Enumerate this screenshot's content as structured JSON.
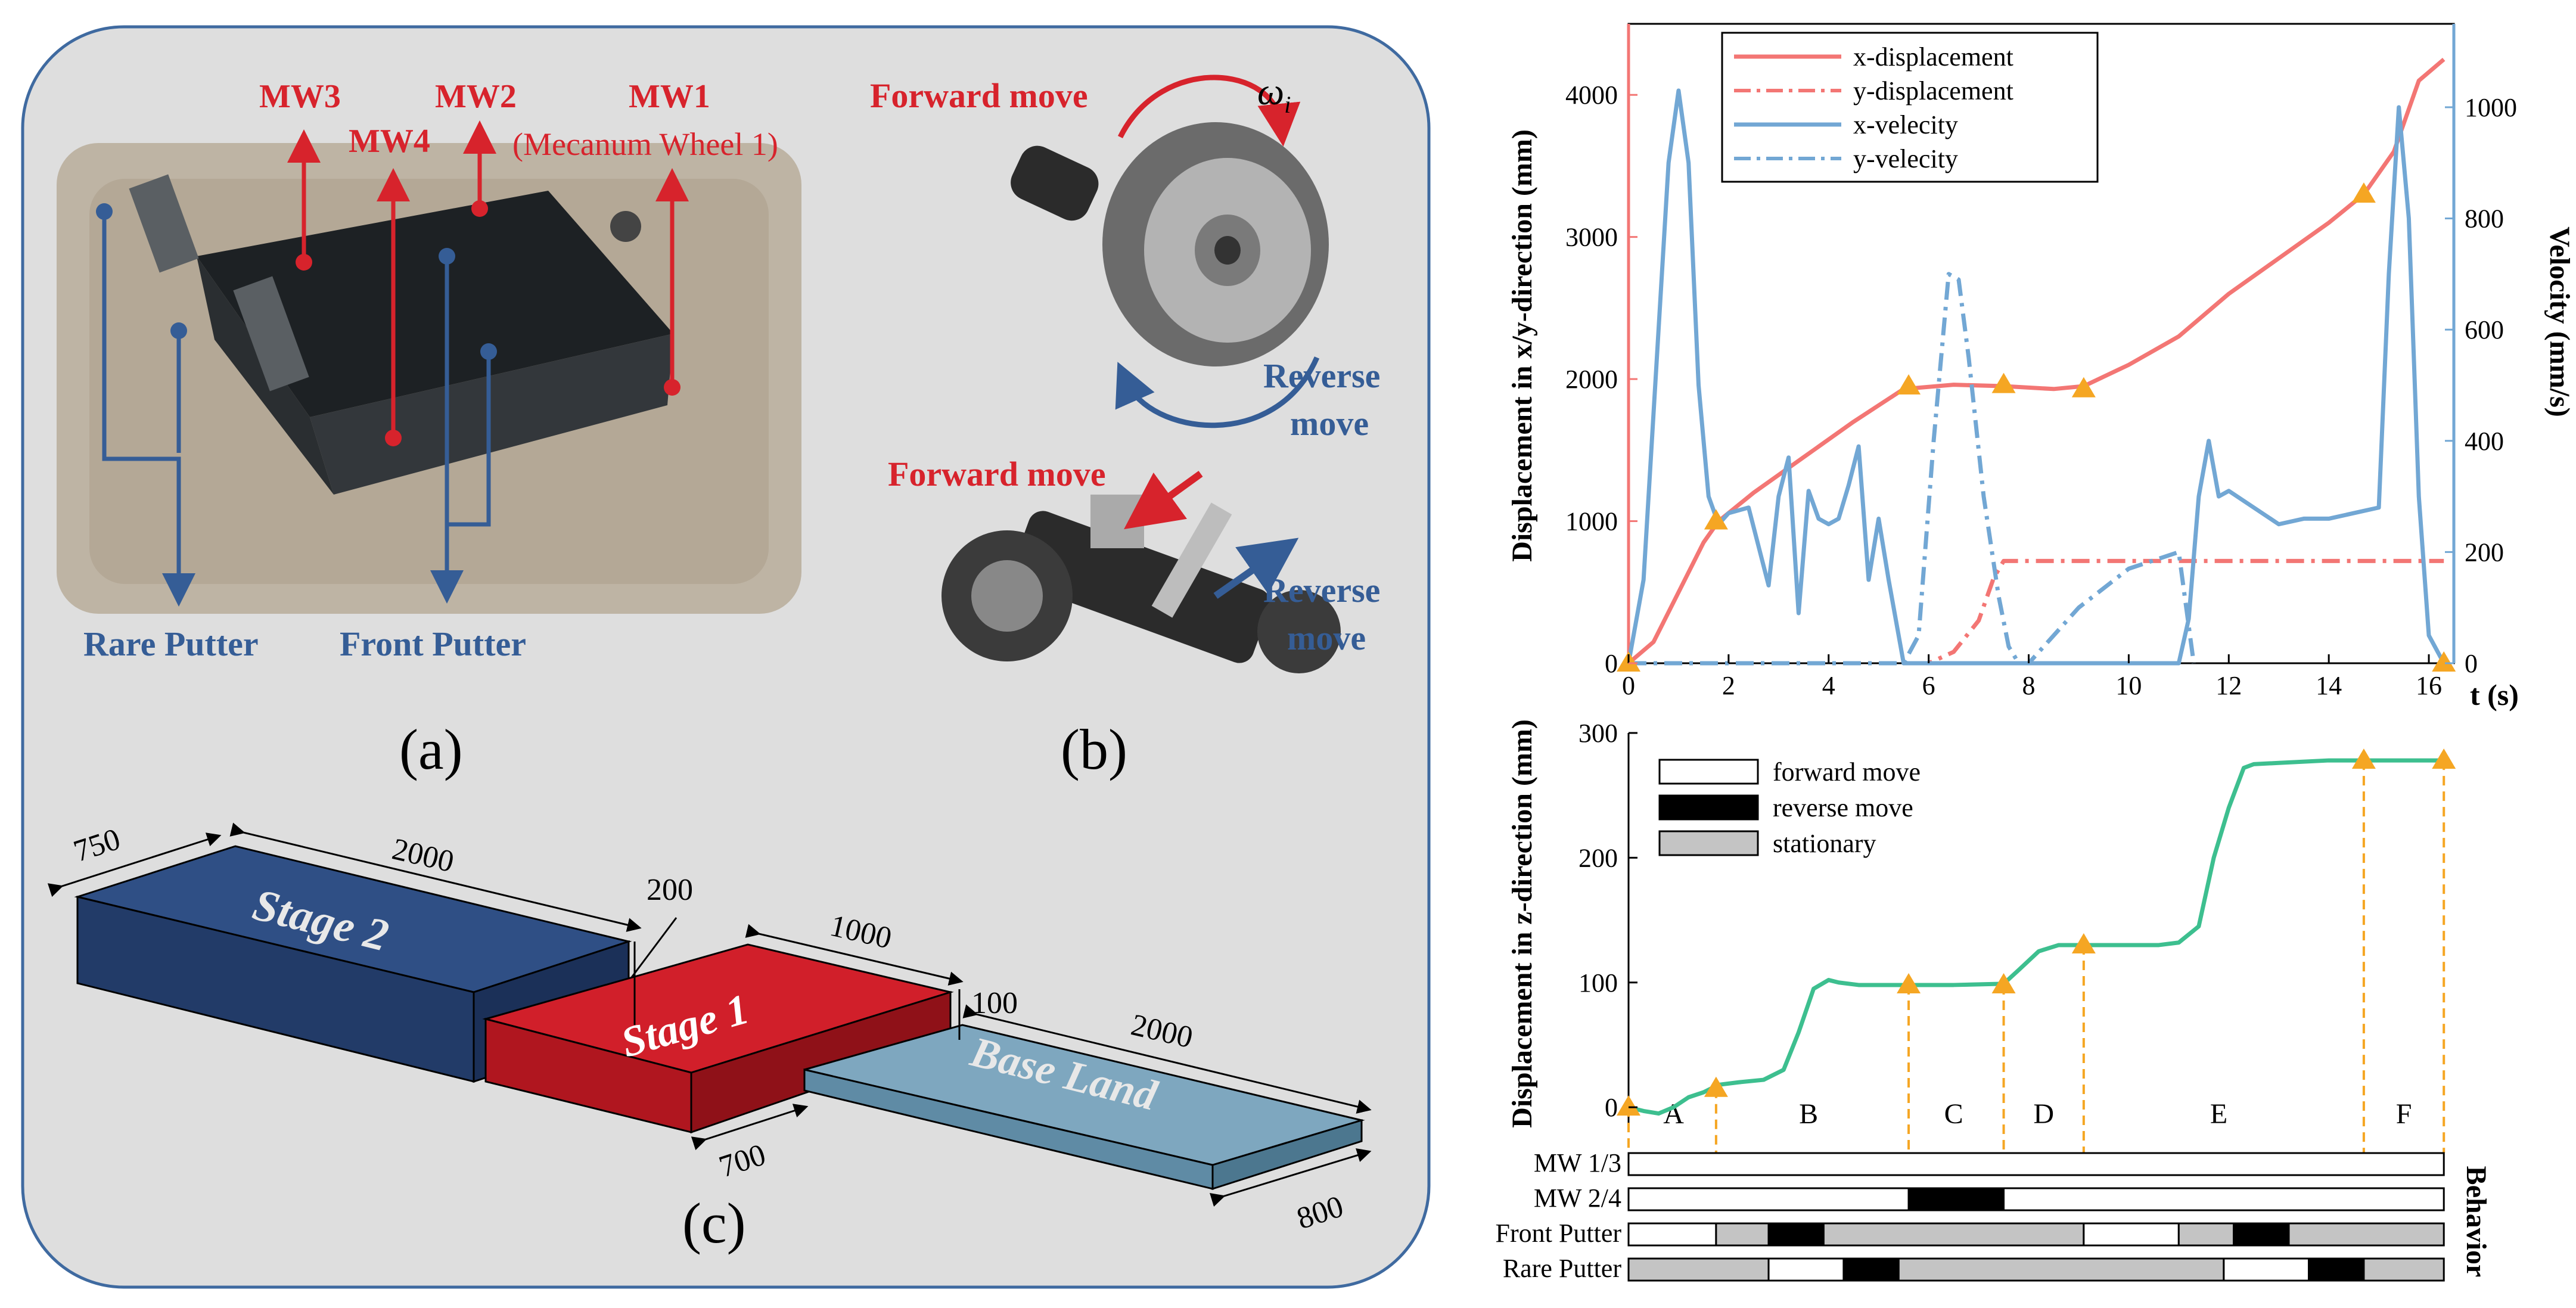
{
  "colors": {
    "red": "#d7232c",
    "blue": "#355d96",
    "panel": "#dedede",
    "panel_border": "#3f6aa0",
    "x_disp": "#f37674",
    "y_disp": "#f37674",
    "velocity": "#72a7d4",
    "z_disp": "#3dbf8f",
    "marker": "#f5a623",
    "stage2": "#2f4f85",
    "stage1": "#d11f2a",
    "base": "#7ea7bf"
  },
  "panel_a": {
    "caption": "(a)",
    "labels": {
      "mw1": "MW1",
      "mw1_sub": "(Mecanum Wheel 1)",
      "mw2": "MW2",
      "mw3": "MW3",
      "mw4": "MW4",
      "rare_putter": "Rare Putter",
      "front_putter": "Front Putter"
    }
  },
  "panel_b": {
    "caption": "(b)",
    "forward_move_1": "Forward move",
    "omega": "ω",
    "omega_sub": "i",
    "reverse_move_1": "Reverse",
    "reverse_move_1b": "move",
    "forward_move_2": "Forward move",
    "reverse_move_2": "Reverse",
    "reverse_move_2b": "move"
  },
  "panel_c": {
    "caption": "(c)",
    "stage2": "Stage 2",
    "stage1": "Stage 1",
    "base": "Base Land",
    "dims": {
      "d750": "750",
      "d2000a": "2000",
      "d200": "200",
      "d1000": "1000",
      "d100": "100",
      "d2000b": "2000",
      "d700": "700",
      "d800": "800"
    }
  },
  "chart_data": [
    {
      "type": "line",
      "title": "",
      "xlabel": "t (s)",
      "ylabel": "Displacement in x/y-direction (mm)",
      "y2label": "Velocity (mm/s)",
      "xlim": [
        0,
        16.5
      ],
      "ylim": [
        0,
        4500
      ],
      "y2lim": [
        0,
        1150
      ],
      "xticks": [
        0,
        2,
        4,
        6,
        8,
        10,
        12,
        14,
        16
      ],
      "yticks": [
        0,
        1000,
        2000,
        3000,
        4000
      ],
      "y2ticks": [
        0,
        200,
        400,
        600,
        800,
        1000
      ],
      "legend": [
        "x-displacement",
        "y-displacement",
        "x-velecity",
        "y-velecity"
      ],
      "legend_position": "top-left",
      "series": [
        {
          "name": "x-displacement",
          "axis": "left",
          "style": "solid",
          "x": [
            0,
            0.5,
            1.0,
            1.5,
            1.8,
            2.5,
            3.5,
            4.5,
            5.5,
            6.5,
            7.5,
            8.5,
            9.1,
            10.0,
            11.0,
            12.0,
            13.0,
            14.0,
            14.7,
            15.3,
            15.8,
            16.3
          ],
          "y": [
            0,
            150,
            500,
            850,
            1000,
            1200,
            1450,
            1700,
            1930,
            1960,
            1950,
            1930,
            1950,
            2100,
            2300,
            2600,
            2850,
            3100,
            3300,
            3600,
            4100,
            4250
          ]
        },
        {
          "name": "y-displacement",
          "axis": "left",
          "style": "dashdot",
          "x": [
            0,
            5.5,
            6.0,
            6.5,
            7.0,
            7.3,
            7.5,
            9.0,
            12.0,
            16.3
          ],
          "y": [
            0,
            0,
            0,
            80,
            300,
            600,
            720,
            720,
            720,
            720
          ]
        },
        {
          "name": "x-velecity",
          "axis": "right",
          "style": "solid",
          "x": [
            0,
            0.3,
            0.6,
            0.8,
            1.0,
            1.2,
            1.4,
            1.6,
            1.8,
            2.0,
            2.4,
            2.8,
            3.0,
            3.2,
            3.4,
            3.6,
            3.8,
            4.0,
            4.2,
            4.4,
            4.6,
            4.8,
            5.0,
            5.2,
            5.5,
            5.8,
            6.0,
            6.5,
            7.0,
            7.5,
            8.0,
            8.5,
            9.0,
            9.5,
            10.0,
            10.5,
            11.0,
            11.2,
            11.4,
            11.6,
            11.8,
            12.0,
            12.5,
            13.0,
            13.5,
            14.0,
            14.5,
            15.0,
            15.2,
            15.4,
            15.6,
            15.8,
            16.0,
            16.3
          ],
          "y": [
            0,
            150,
            600,
            900,
            1030,
            900,
            500,
            300,
            250,
            270,
            280,
            140,
            300,
            370,
            90,
            310,
            260,
            250,
            260,
            320,
            390,
            150,
            260,
            150,
            0,
            0,
            0,
            0,
            0,
            0,
            0,
            0,
            0,
            0,
            0,
            0,
            0,
            80,
            300,
            400,
            300,
            310,
            280,
            250,
            260,
            260,
            270,
            280,
            700,
            1000,
            800,
            300,
            50,
            0
          ]
        },
        {
          "name": "y-velecity",
          "axis": "right",
          "style": "dashdot",
          "x": [
            0,
            5.5,
            5.8,
            6.1,
            6.4,
            6.6,
            6.8,
            7.1,
            7.4,
            7.6,
            7.8,
            8.0,
            9.0,
            10.0,
            11.0,
            11.3
          ],
          "y": [
            0,
            0,
            50,
            400,
            700,
            690,
            550,
            300,
            120,
            30,
            0,
            0,
            100,
            170,
            200,
            0
          ]
        }
      ],
      "markers": {
        "x": [
          0,
          1.75,
          5.6,
          7.5,
          9.1,
          14.7,
          16.3
        ],
        "y": [
          0,
          1000,
          1950,
          1960,
          1930,
          3300,
          0
        ]
      }
    },
    {
      "type": "line",
      "title": "",
      "xlabel": "",
      "ylabel": "Displacement in z-direction (mm)",
      "xlim": [
        0,
        16.5
      ],
      "ylim": [
        -20,
        300
      ],
      "yticks": [
        0,
        100,
        200,
        300
      ],
      "legend": [
        "forward move",
        "reverse move",
        "stationary"
      ],
      "series": [
        {
          "name": "z-displacement",
          "style": "solid",
          "x": [
            0,
            0.3,
            0.6,
            0.9,
            1.2,
            1.5,
            1.8,
            2.2,
            2.7,
            3.1,
            3.4,
            3.7,
            4.0,
            4.2,
            4.6,
            5.0,
            5.6,
            6.5,
            7.5,
            7.8,
            8.2,
            8.6,
            9.1,
            9.6,
            10.1,
            10.6,
            11.0,
            11.4,
            11.7,
            12.0,
            12.3,
            12.5,
            13.0,
            14.0,
            14.7,
            15.5,
            16.3
          ],
          "y": [
            0,
            -3,
            -5,
            0,
            8,
            12,
            18,
            20,
            22,
            30,
            60,
            95,
            102,
            100,
            98,
            98,
            98,
            98,
            99,
            110,
            125,
            130,
            130,
            130,
            130,
            130,
            132,
            145,
            200,
            240,
            272,
            275,
            276,
            278,
            278,
            278,
            278
          ]
        }
      ],
      "markers": {
        "x": [
          0,
          1.75,
          5.6,
          7.5,
          9.1,
          14.7,
          16.3
        ],
        "y": [
          0,
          15,
          98,
          98,
          130,
          278,
          278
        ]
      },
      "phase_lines_x": [
        0,
        1.75,
        5.6,
        7.5,
        9.1,
        14.7,
        16.3
      ],
      "phases": [
        "A",
        "B",
        "C",
        "D",
        "E",
        "F"
      ],
      "phase_centers": [
        0.9,
        3.6,
        6.5,
        8.3,
        11.8,
        15.5
      ],
      "behavior_title": "Behavior",
      "behavior_rows": [
        {
          "label": "MW 1/3",
          "segments": [
            {
              "start": 0,
              "end": 16.3,
              "state": "forward"
            }
          ]
        },
        {
          "label": "MW 2/4",
          "segments": [
            {
              "start": 0,
              "end": 5.6,
              "state": "forward"
            },
            {
              "start": 5.6,
              "end": 7.5,
              "state": "reverse"
            },
            {
              "start": 7.5,
              "end": 16.3,
              "state": "forward"
            }
          ]
        },
        {
          "label": "Front Putter",
          "segments": [
            {
              "start": 0,
              "end": 1.75,
              "state": "forward"
            },
            {
              "start": 1.75,
              "end": 2.8,
              "state": "stationary"
            },
            {
              "start": 2.8,
              "end": 3.9,
              "state": "reverse"
            },
            {
              "start": 3.9,
              "end": 9.1,
              "state": "stationary"
            },
            {
              "start": 9.1,
              "end": 11.0,
              "state": "forward"
            },
            {
              "start": 11.0,
              "end": 12.1,
              "state": "stationary"
            },
            {
              "start": 12.1,
              "end": 13.2,
              "state": "reverse"
            },
            {
              "start": 13.2,
              "end": 16.3,
              "state": "stationary"
            }
          ]
        },
        {
          "label": "Rare Putter",
          "segments": [
            {
              "start": 0,
              "end": 2.8,
              "state": "stationary"
            },
            {
              "start": 2.8,
              "end": 4.3,
              "state": "forward"
            },
            {
              "start": 4.3,
              "end": 5.4,
              "state": "reverse"
            },
            {
              "start": 5.4,
              "end": 11.9,
              "state": "stationary"
            },
            {
              "start": 11.9,
              "end": 13.6,
              "state": "forward"
            },
            {
              "start": 13.6,
              "end": 14.7,
              "state": "reverse"
            },
            {
              "start": 14.7,
              "end": 16.3,
              "state": "stationary"
            }
          ]
        }
      ]
    }
  ]
}
